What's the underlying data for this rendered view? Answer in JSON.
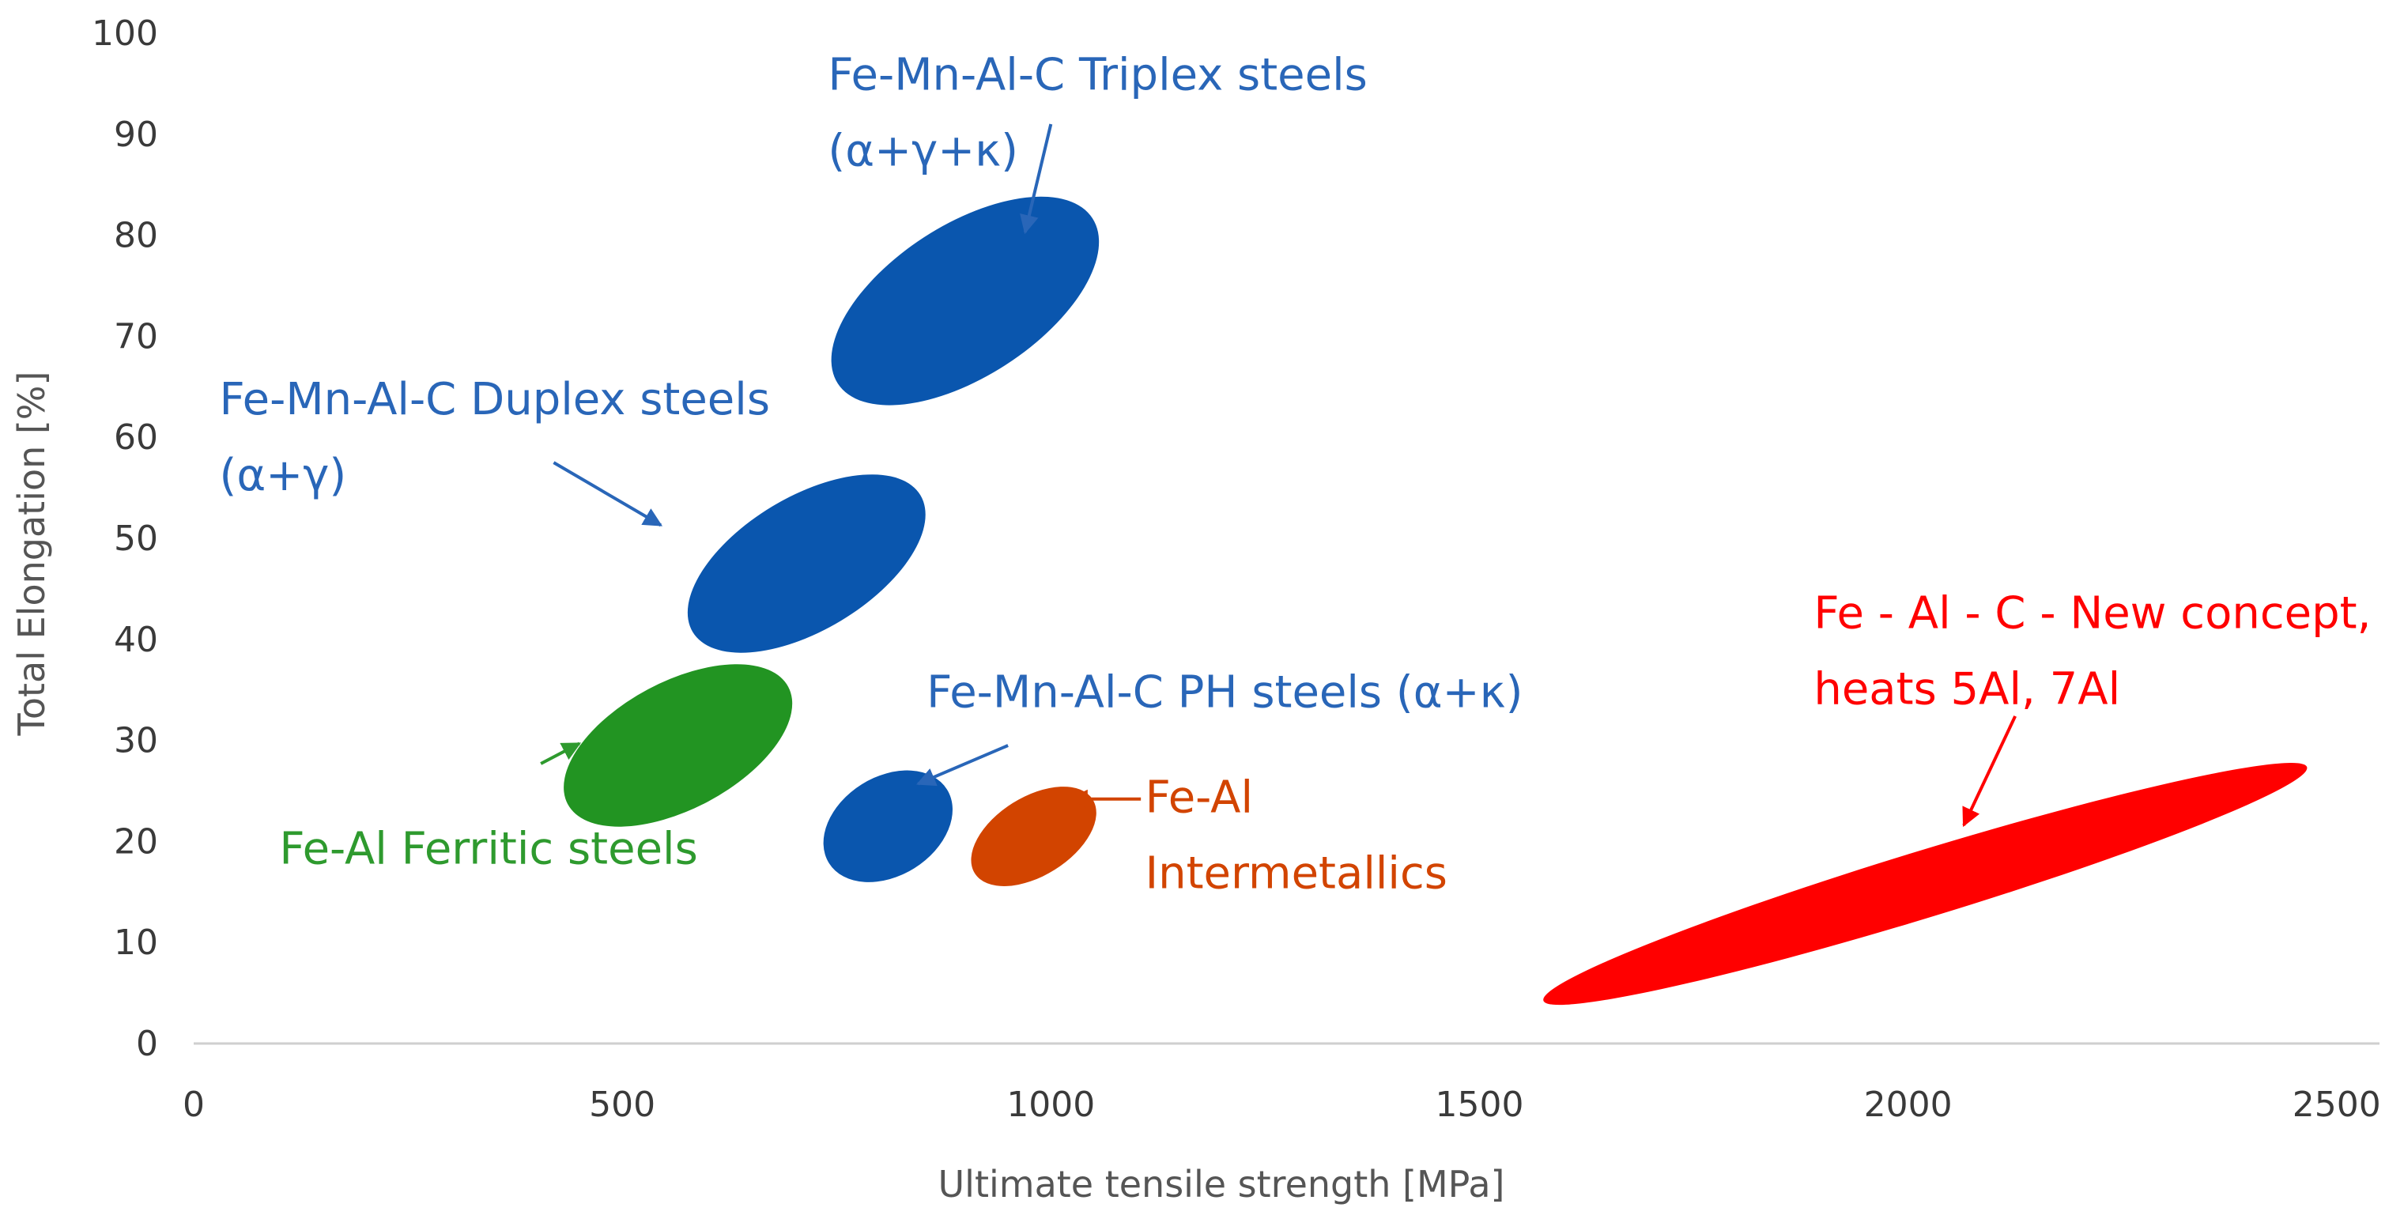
{
  "chart_data": {
    "type": "scatter",
    "subtype": "ashby-region-map",
    "xlabel": "Ultimate tensile strength [MPa]",
    "ylabel": "Total Elongation [%]",
    "xlim": [
      0,
      2550
    ],
    "ylim": [
      0,
      100
    ],
    "xticks": [
      "0",
      "500",
      "1000",
      "1500",
      "2000",
      "2500"
    ],
    "yticks": [
      "0",
      "10",
      "20",
      "30",
      "40",
      "50",
      "60",
      "70",
      "80",
      "90",
      "100"
    ],
    "gridlines": false,
    "regions": [
      {
        "name": "triplex",
        "label_lines": [
          "Fe-Mn-Al-C Triplex steels",
          "(α+γ+κ)"
        ],
        "color": "#0a56ae",
        "text_color": "#2966b8",
        "cx": 900,
        "cy": 73.5,
        "rx": 192,
        "ry": 7.5,
        "angle_deg": -33,
        "label_x": 740,
        "label_y": 94.4,
        "label_anchor": "start",
        "arrow_from": [
          1000,
          91
        ],
        "arrow_to": [
          970,
          80.3
        ]
      },
      {
        "name": "duplex",
        "label_lines": [
          "Fe-Mn-Al-C Duplex steels",
          "(α+γ)"
        ],
        "color": "#0a56ae",
        "text_color": "#2966b8",
        "cx": 715,
        "cy": 47.5,
        "rx": 168,
        "ry": 6.6,
        "angle_deg": -31,
        "label_x": 30,
        "label_y": 62.3,
        "label_anchor": "start",
        "arrow_from": [
          420,
          57.5
        ],
        "arrow_to": [
          545,
          51.3
        ]
      },
      {
        "name": "ferritic",
        "label_lines": [
          "Fe-Al Ferritic steels"
        ],
        "color": "#229422",
        "text_color": "#2e9a2e",
        "cx": 565,
        "cy": 29.5,
        "rx": 158,
        "ry": 6.3,
        "angle_deg": -28,
        "label_x": 100,
        "label_y": 17.8,
        "label_anchor": "start",
        "arrow_from": [
          405,
          27.7
        ],
        "arrow_to": [
          450,
          29.7
        ]
      },
      {
        "name": "ph",
        "label_lines": [
          "Fe-Mn-Al-C PH steels (α+κ)"
        ],
        "color": "#0a56ae",
        "text_color": "#2966b8",
        "cx": 810,
        "cy": 21.5,
        "rx": 88,
        "ry": 4.9,
        "angle_deg": -32,
        "label_x": 855,
        "label_y": 33.3,
        "label_anchor": "start",
        "arrow_from": [
          950,
          29.5
        ],
        "arrow_to": [
          845,
          25.7
        ]
      },
      {
        "name": "intermetallics",
        "label_lines": [
          "Fe-Al",
          "Intermetallics"
        ],
        "color": "#d24400",
        "text_color": "#d24400",
        "cx": 980,
        "cy": 20.5,
        "rx": 88,
        "ry": 3.9,
        "angle_deg": -32,
        "label_x": 1110,
        "label_y": 22.9,
        "label_anchor": "start",
        "arrow_from": [
          1105,
          24.2
        ],
        "arrow_to": [
          1023,
          24.2
        ]
      },
      {
        "name": "new-concept",
        "label_lines": [
          "Fe - Al - C - New concept,",
          "heats 5Al, 7Al"
        ],
        "color": "#ff0000",
        "text_color": "#ff0000",
        "cx": 2020,
        "cy": 15.8,
        "rx": 505,
        "ry": 3.3,
        "angle_deg": -17,
        "label_x": 1890,
        "label_y": 41.1,
        "label_anchor": "start",
        "arrow_from": [
          2125,
          32.4
        ],
        "arrow_to": [
          2065,
          21.6
        ]
      }
    ]
  }
}
